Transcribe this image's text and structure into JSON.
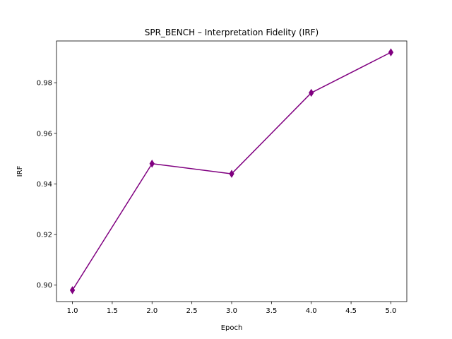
{
  "chart_data": {
    "type": "line",
    "title": "SPR_BENCH – Interpretation Fidelity (IRF)",
    "xlabel": "Epoch",
    "ylabel": "IRF",
    "x": [
      1.0,
      2.0,
      3.0,
      4.0,
      5.0
    ],
    "series": [
      {
        "values": [
          0.898,
          0.948,
          0.944,
          0.976,
          0.992
        ]
      }
    ],
    "xlim": [
      0.8,
      5.2
    ],
    "ylim": [
      0.8935,
      0.9965
    ],
    "xticks": [
      "1.0",
      "1.5",
      "2.0",
      "2.5",
      "3.0",
      "3.5",
      "4.0",
      "4.5",
      "5.0"
    ],
    "yticks": [
      "0.90",
      "0.92",
      "0.94",
      "0.96",
      "0.98"
    ],
    "grid": false,
    "line_color": "#800080",
    "marker": "thin-diamond"
  }
}
